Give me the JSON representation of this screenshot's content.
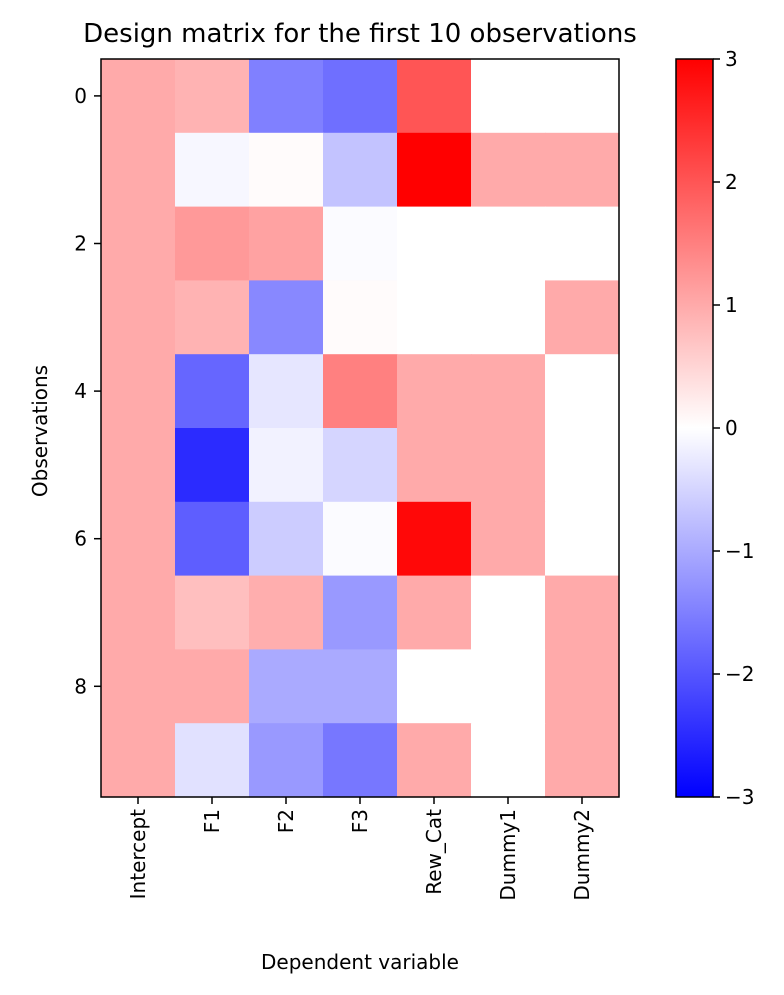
{
  "chart_data": {
    "type": "heatmap",
    "title": "Design matrix for the first 10 observations",
    "xlabel": "Dependent variable",
    "ylabel": "Observations",
    "columns": [
      "Intercept",
      "F1",
      "F2",
      "F3",
      "Rew_Cat",
      "Dummy1",
      "Dummy2"
    ],
    "rows": [
      0,
      1,
      2,
      3,
      4,
      5,
      6,
      7,
      8,
      9
    ],
    "y_ticks": [
      "0",
      "2",
      "4",
      "6",
      "8"
    ],
    "colormap": {
      "name": "bwr",
      "low": "#0000ff",
      "mid": "#ffffff",
      "high": "#ff0000"
    },
    "vmin": -3,
    "vmax": 3,
    "colorbar_ticks": [
      "−3",
      "−2",
      "−1",
      "0",
      "1",
      "2",
      "3"
    ],
    "values": [
      [
        1,
        0.9,
        -1.5,
        -1.7,
        2.0,
        0,
        0
      ],
      [
        1,
        -0.1,
        0.05,
        -0.7,
        3.0,
        1,
        1
      ],
      [
        1,
        1.2,
        1.1,
        -0.05,
        0,
        0,
        0
      ],
      [
        1,
        0.9,
        -1.4,
        0.05,
        0,
        0,
        1
      ],
      [
        1,
        -1.8,
        -0.3,
        1.5,
        1,
        1,
        0
      ],
      [
        1,
        -2.5,
        -0.15,
        -0.5,
        1,
        1,
        0
      ],
      [
        1,
        -1.9,
        -0.6,
        -0.05,
        2.9,
        1,
        0
      ],
      [
        1,
        0.75,
        0.95,
        -1.2,
        1,
        0,
        1
      ],
      [
        1,
        1.0,
        -1.0,
        -1.0,
        0,
        0,
        1
      ],
      [
        1,
        -0.35,
        -1.2,
        -1.6,
        1,
        0,
        1
      ]
    ]
  }
}
